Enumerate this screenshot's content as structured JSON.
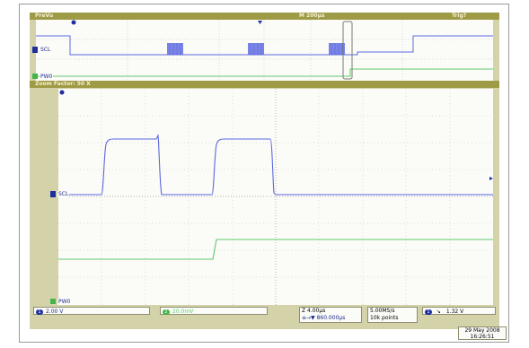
{
  "top_bar": {
    "mode": "PreVu",
    "timebase": "M 200µs",
    "trigger": "Trig?"
  },
  "zoom_bar": {
    "zoom_factor": "Zoom Factor: 50 X"
  },
  "channels": {
    "ch1_label": "SCL",
    "ch1_number": "1",
    "d0_label": "PW0",
    "ch1_marker": "①"
  },
  "status": {
    "ch1_scale": "2.00 V",
    "ch2_scale": "20.0mV",
    "zoom_time": "Z 4.00µs",
    "zoom_position": "≡→▼ 860.000µs",
    "sample_rate": "5.00MS/s",
    "record_length": "10k points",
    "trigger_source": "1",
    "trigger_slope": "↘",
    "trigger_level": "1.32 V",
    "date": "29 May 2008",
    "time": "16:26:51"
  },
  "colors": {
    "ch1": "#5b68e0",
    "d0": "#63c96c",
    "background": "#d4d2a8",
    "bar": "#9f9a45"
  }
}
